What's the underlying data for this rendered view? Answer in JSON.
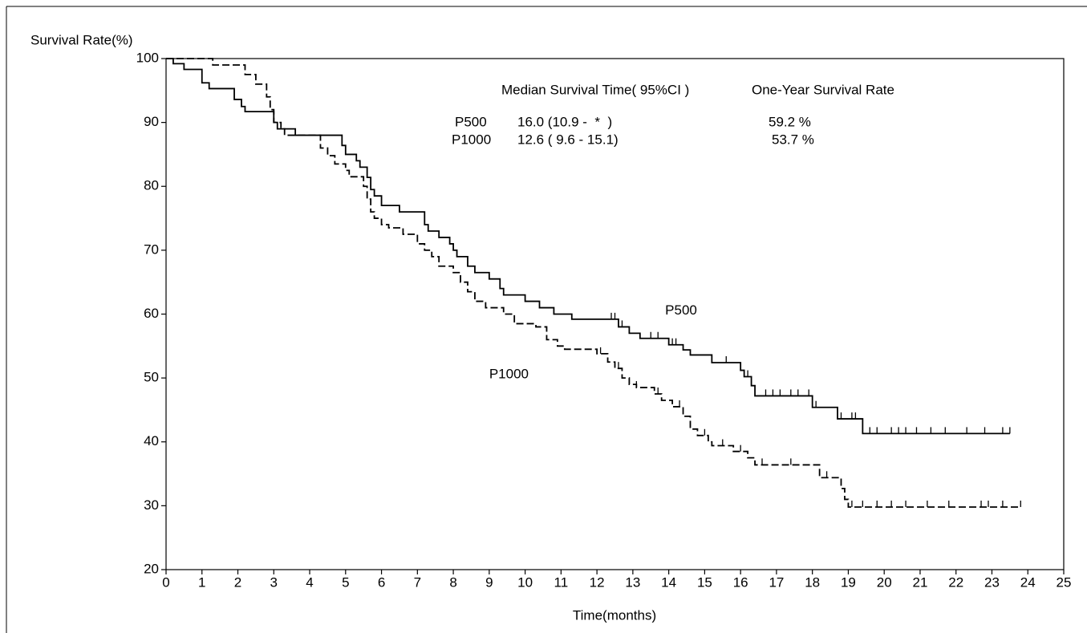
{
  "chart_data": {
    "type": "step-line",
    "ylabel": "Survival Rate(%)",
    "xlabel": "Time(months)",
    "xlim": [
      0,
      25
    ],
    "xticks": [
      0,
      1,
      2,
      3,
      4,
      5,
      6,
      7,
      8,
      9,
      10,
      11,
      12,
      13,
      14,
      15,
      16,
      17,
      18,
      19,
      20,
      21,
      22,
      23,
      24,
      25
    ],
    "ylim": [
      20,
      100
    ],
    "yticks": [
      20,
      30,
      40,
      50,
      60,
      70,
      80,
      90,
      100
    ],
    "step": "post",
    "series": [
      {
        "name": "P500",
        "color": "#000000",
        "dash": "none",
        "x": [
          0,
          0.2,
          0.5,
          1.0,
          1.2,
          1.9,
          2.1,
          2.2,
          3.0,
          3.1,
          3.6,
          4.9,
          5.0,
          5.3,
          5.4,
          5.6,
          5.7,
          5.8,
          6.0,
          6.5,
          7.2,
          7.3,
          7.6,
          7.9,
          8.0,
          8.1,
          8.4,
          8.6,
          9.0,
          9.3,
          9.4,
          10.0,
          10.4,
          10.8,
          11.3,
          12.6,
          12.9,
          13.2,
          14.0,
          14.4,
          14.6,
          15.2,
          16.0,
          16.1,
          16.3,
          16.4,
          18.0,
          18.7,
          19.4,
          23.5
        ],
        "values": [
          100,
          99.2,
          98.3,
          96.2,
          95.3,
          93.6,
          92.5,
          91.7,
          90,
          89,
          88,
          86.4,
          85,
          84,
          83,
          81.4,
          79.5,
          78.5,
          77,
          76,
          74,
          73,
          72,
          71,
          70,
          69,
          67.5,
          66.5,
          65.5,
          64,
          63,
          62,
          61,
          60,
          59.2,
          58,
          57,
          56.2,
          55.2,
          54.4,
          53.6,
          52.4,
          51.2,
          50.2,
          48.8,
          47.2,
          45.4,
          43.6,
          41.3,
          41.3
        ],
        "censored": [
          12.4,
          12.5,
          12.7,
          13.5,
          13.7,
          14.1,
          14.2,
          15.6,
          16.2,
          16.7,
          16.9,
          17.1,
          17.4,
          17.6,
          17.9,
          18.1,
          18.8,
          19.1,
          19.2,
          19.6,
          19.8,
          20.2,
          20.4,
          20.6,
          20.9,
          21.3,
          21.7,
          22.3,
          22.8,
          23.3,
          23.5
        ],
        "label_at": [
          13.9,
          60.5
        ]
      },
      {
        "name": "P1000",
        "color": "#000000",
        "dash": "9,4",
        "x": [
          0,
          1.3,
          2.2,
          2.5,
          2.8,
          2.9,
          3.0,
          3.2,
          3.3,
          4.3,
          4.5,
          4.7,
          5.0,
          5.1,
          5.5,
          5.6,
          5.7,
          5.8,
          6.0,
          6.2,
          6.6,
          7.0,
          7.2,
          7.4,
          7.6,
          8.0,
          8.2,
          8.4,
          8.6,
          8.9,
          9.4,
          9.7,
          10.3,
          10.6,
          10.9,
          11.1,
          12.0,
          12.3,
          12.5,
          12.7,
          12.9,
          13.1,
          13.6,
          13.8,
          14.1,
          14.4,
          14.6,
          14.8,
          15.1,
          15.2,
          15.8,
          16.2,
          16.4,
          18.2,
          18.8,
          18.9,
          19.0,
          23.8
        ],
        "values": [
          100,
          99,
          97.5,
          96,
          94,
          92,
          90,
          89,
          88,
          86,
          84.8,
          83.5,
          82.5,
          81.5,
          80,
          78,
          76,
          75,
          74,
          73.5,
          72.5,
          71,
          70,
          69,
          67.5,
          66.5,
          65,
          63.5,
          62,
          61,
          60,
          58.5,
          58,
          56,
          55,
          54.5,
          53.8,
          52.5,
          51.5,
          50,
          49,
          48.5,
          47.5,
          46.5,
          45.5,
          44,
          42,
          41,
          40,
          39.4,
          38.5,
          37.5,
          36.4,
          34.4,
          32.7,
          31,
          29.8,
          29.8
        ],
        "censored": [
          12.1,
          12.6,
          13.1,
          13.7,
          14.3,
          15.0,
          15.5,
          16.0,
          16.6,
          17.4,
          18.4,
          19.1,
          19.4,
          19.8,
          20.2,
          20.6,
          21.2,
          21.8,
          22.7,
          22.9,
          23.3,
          23.8
        ],
        "label_at": [
          9.0,
          50.5
        ]
      }
    ],
    "annotation_table": {
      "columns": [
        "Median Survival Time( 95%CI )",
        "One-Year Survival Rate"
      ],
      "rows": [
        {
          "median": "16.0 (10.9 -  *  )",
          "one_year": "59.2 %"
        },
        {
          "median": "12.6 ( 9.6 - 15.1)",
          "one_year": "53.7 %"
        }
      ]
    }
  }
}
